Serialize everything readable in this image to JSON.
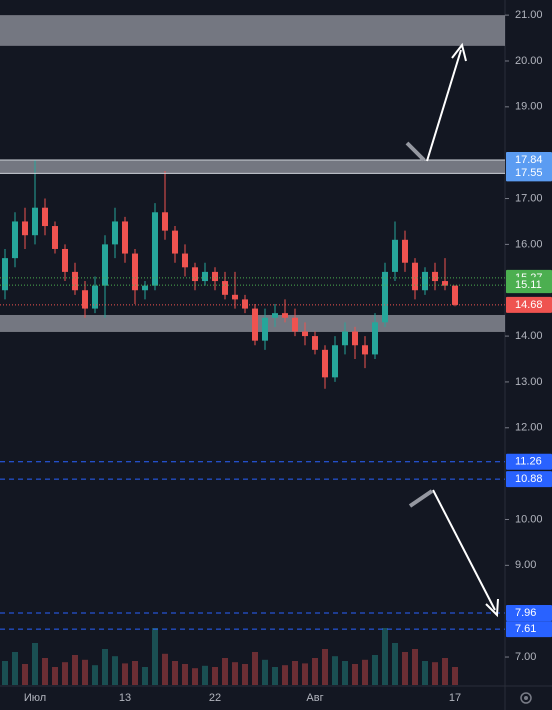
{
  "chart_data": {
    "type": "candlestick",
    "categories": [
      null,
      null,
      null,
      "Июл",
      null,
      null,
      null,
      null,
      null,
      null,
      null,
      null,
      "13",
      null,
      null,
      null,
      null,
      null,
      null,
      null,
      null,
      "22",
      null,
      null,
      null,
      null,
      null,
      null,
      null,
      null,
      null,
      "Авг",
      null,
      null,
      null,
      null,
      null,
      null,
      null,
      null,
      null,
      null,
      null,
      null,
      null,
      "17"
    ],
    "open": [
      15.0,
      15.7,
      16.5,
      16.2,
      16.8,
      16.4,
      15.9,
      15.4,
      15.0,
      14.6,
      15.1,
      16.0,
      16.5,
      15.8,
      15.0,
      15.1,
      16.7,
      16.3,
      15.8,
      15.5,
      15.2,
      15.4,
      15.2,
      14.9,
      14.8,
      14.6,
      13.9,
      14.4,
      14.5,
      14.4,
      14.1,
      14.0,
      13.7,
      13.1,
      13.8,
      14.1,
      13.8,
      13.6,
      14.3,
      15.4,
      16.1,
      15.6,
      15.0,
      15.4,
      15.2,
      15.1
    ],
    "high": [
      15.9,
      16.7,
      16.8,
      17.84,
      17.0,
      16.5,
      16.0,
      15.6,
      15.2,
      15.3,
      16.2,
      16.8,
      16.6,
      15.9,
      15.2,
      16.9,
      17.6,
      16.4,
      16.0,
      15.6,
      15.6,
      15.5,
      15.4,
      15.4,
      14.9,
      14.7,
      14.6,
      14.7,
      14.8,
      14.6,
      14.3,
      14.1,
      13.8,
      14.0,
      14.3,
      14.2,
      14.0,
      14.5,
      15.6,
      16.5,
      16.3,
      15.7,
      15.5,
      15.6,
      15.7,
      15.1
    ],
    "low": [
      14.8,
      15.5,
      15.9,
      16.0,
      16.2,
      15.8,
      15.2,
      14.9,
      14.4,
      14.5,
      14.4,
      15.7,
      15.6,
      14.7,
      14.8,
      15.0,
      16.1,
      15.6,
      15.3,
      15.0,
      15.1,
      15.0,
      14.8,
      14.6,
      14.5,
      13.8,
      13.7,
      14.2,
      14.3,
      14.0,
      13.8,
      13.6,
      12.85,
      13.0,
      13.6,
      13.5,
      13.3,
      13.5,
      14.2,
      15.2,
      15.4,
      14.8,
      14.9,
      15.0,
      15.0,
      14.65
    ],
    "close": [
      15.7,
      16.5,
      16.2,
      16.8,
      16.4,
      15.9,
      15.4,
      15.0,
      14.6,
      15.1,
      16.0,
      16.5,
      15.8,
      15.0,
      15.1,
      16.7,
      16.3,
      15.8,
      15.5,
      15.2,
      15.4,
      15.2,
      14.9,
      14.8,
      14.6,
      13.9,
      14.4,
      14.5,
      14.4,
      14.1,
      14.0,
      13.7,
      13.1,
      13.8,
      14.1,
      13.8,
      13.6,
      14.3,
      15.4,
      16.1,
      15.6,
      15.0,
      15.4,
      15.2,
      15.1,
      14.68
    ],
    "up_color": "#26a69a",
    "down_color": "#ef5350",
    "volume": {
      "values": [
        40,
        55,
        35,
        70,
        45,
        30,
        38,
        50,
        42,
        33,
        60,
        48,
        36,
        40,
        30,
        95,
        52,
        40,
        35,
        28,
        32,
        30,
        45,
        38,
        35,
        55,
        42,
        30,
        33,
        40,
        36,
        45,
        60,
        48,
        40,
        35,
        42,
        50,
        95,
        70,
        55,
        60,
        40,
        38,
        45,
        30
      ],
      "ylim": [
        0,
        100
      ]
    },
    "ylim": [
      6.39,
      21.33
    ],
    "yticks": [
      {
        "value": 7,
        "label": "7.00"
      },
      {
        "value": 9,
        "label": "9.00"
      },
      {
        "value": 10,
        "label": "10.00"
      },
      {
        "value": 12,
        "label": "12.00"
      },
      {
        "value": 13,
        "label": "13.00"
      },
      {
        "value": 14,
        "label": "14.00"
      },
      {
        "value": 16,
        "label": "16.00"
      },
      {
        "value": 17,
        "label": "17.00"
      },
      {
        "value": 19,
        "label": "19.00"
      },
      {
        "value": 20,
        "label": "20.00"
      },
      {
        "value": 21,
        "label": "21.00"
      }
    ],
    "zones": [
      [
        20.33,
        21.0
      ],
      [
        17.55,
        17.84
      ],
      [
        14.09,
        14.46
      ]
    ],
    "zone_color": "#9598a1",
    "price_lines": [
      {
        "value": 17.84,
        "color": "#5b9cf2",
        "style": "solid"
      },
      {
        "value": 17.55,
        "color": "#5b9cf2",
        "style": "solid"
      },
      {
        "value": 15.27,
        "color": "#4caf50",
        "style": "dotted"
      },
      {
        "value": 15.11,
        "color": "#4caf50",
        "style": "dotted"
      },
      {
        "value": 14.68,
        "color": "#ef5350",
        "style": "dotted"
      },
      {
        "value": 11.26,
        "color": "#2962ff",
        "style": "dashed"
      },
      {
        "value": 10.88,
        "color": "#2962ff",
        "style": "dashed"
      },
      {
        "value": 7.96,
        "color": "#2962ff",
        "style": "dashed"
      },
      {
        "value": 7.61,
        "color": "#2962ff",
        "style": "dashed"
      }
    ]
  }
}
